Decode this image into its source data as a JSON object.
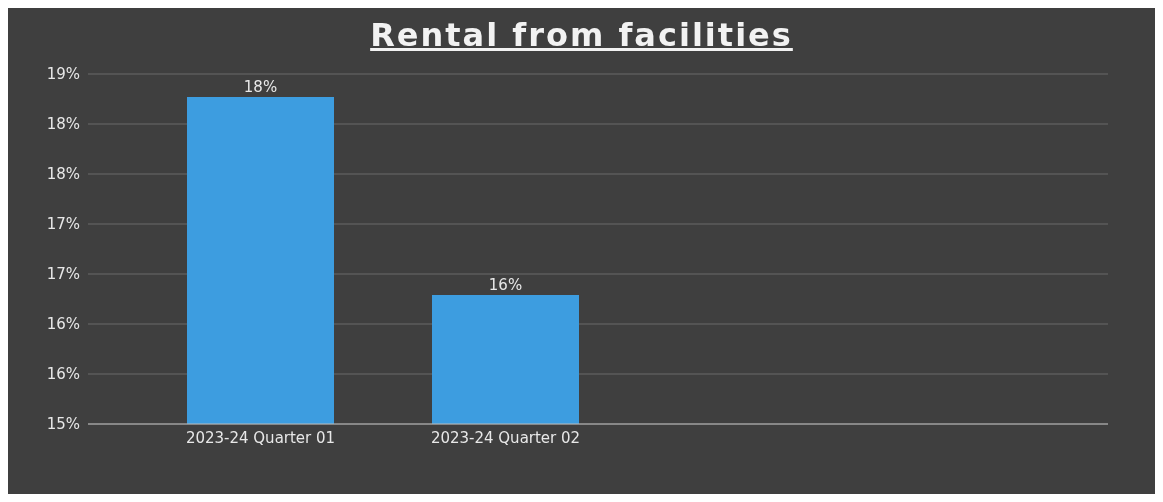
{
  "chart_data": {
    "type": "bar",
    "title": "Rental from facilities",
    "categories": [
      "2023-24 Quarter 01",
      "2023-24 Quarter 02"
    ],
    "values": [
      18.27,
      16.29
    ],
    "value_labels": [
      "18%",
      "16%"
    ],
    "color": "#3d9de0",
    "ylim": [
      15,
      18.5
    ],
    "yticks": [
      {
        "value": 15,
        "label": "15%"
      },
      {
        "value": 15.5,
        "label": "16%"
      },
      {
        "value": 16,
        "label": "16%"
      },
      {
        "value": 16.5,
        "label": "17%"
      },
      {
        "value": 17,
        "label": "17%"
      },
      {
        "value": 17.5,
        "label": "18%"
      },
      {
        "value": 18,
        "label": "18%"
      },
      {
        "value": 18.5,
        "label": "19%"
      }
    ],
    "grid": "y"
  }
}
